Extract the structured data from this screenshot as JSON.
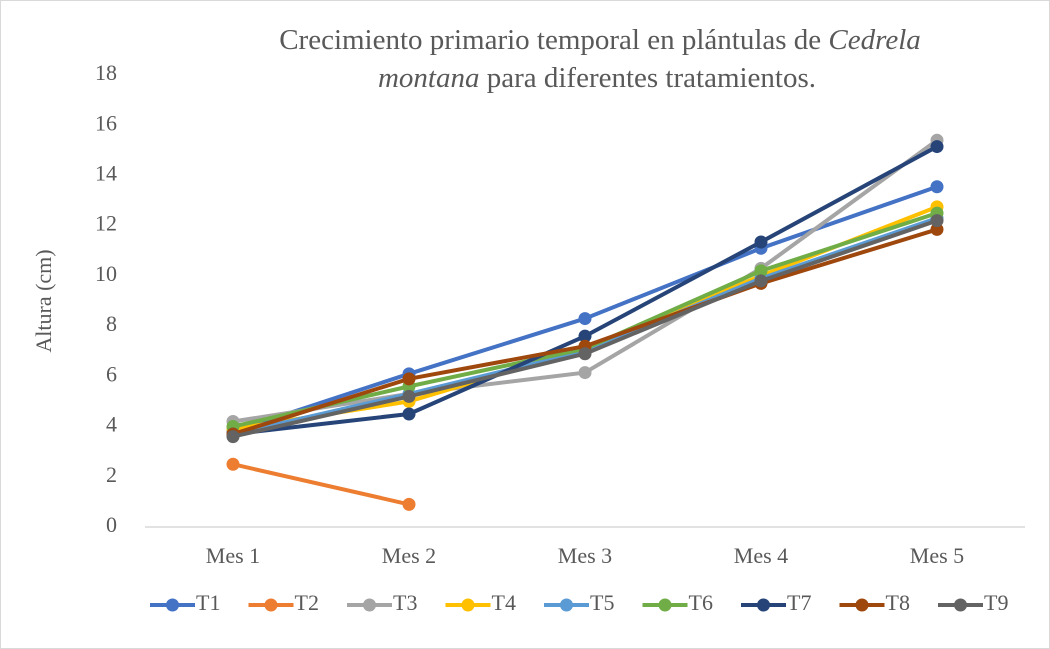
{
  "chart_data": {
    "type": "line",
    "title": [
      "Crecimiento primario temporal en plántulas de ",
      "Cedrela",
      "montana",
      " para diferentes tratamientos."
    ],
    "y_label": "Altura (cm)",
    "categories": [
      "Mes 1",
      "Mes 2",
      "Mes 3",
      "Mes 4",
      "Mes 5"
    ],
    "ylim": [
      0,
      18
    ],
    "yticks": [
      0,
      2,
      4,
      6,
      8,
      10,
      12,
      14,
      16,
      18
    ],
    "grid": false,
    "legend": "bottom",
    "series": [
      {
        "name": "T1",
        "color": "#4472c4",
        "values": [
          3.8,
          6.1,
          8.3,
          11.1,
          13.55
        ]
      },
      {
        "name": "T2",
        "color": "#ed7d31",
        "values": [
          2.5,
          0.9,
          null,
          null,
          null
        ]
      },
      {
        "name": "T3",
        "color": "#a5a5a5",
        "values": [
          4.2,
          5.3,
          6.15,
          10.3,
          15.4
        ]
      },
      {
        "name": "T4",
        "color": "#ffc000",
        "values": [
          3.9,
          5.0,
          7.1,
          10.0,
          12.75
        ]
      },
      {
        "name": "T5",
        "color": "#5b9bd5",
        "values": [
          3.7,
          5.3,
          7.0,
          9.9,
          12.3
        ]
      },
      {
        "name": "T6",
        "color": "#70ad47",
        "values": [
          4.0,
          5.6,
          7.1,
          10.2,
          12.5
        ]
      },
      {
        "name": "T7",
        "color": "#264478",
        "values": [
          3.7,
          4.5,
          7.6,
          11.35,
          15.15
        ]
      },
      {
        "name": "T8",
        "color": "#9e480e",
        "values": [
          3.7,
          5.9,
          7.2,
          9.7,
          11.85
        ]
      },
      {
        "name": "T9",
        "color": "#636363",
        "values": [
          3.6,
          5.2,
          6.9,
          9.8,
          12.2
        ]
      }
    ]
  }
}
